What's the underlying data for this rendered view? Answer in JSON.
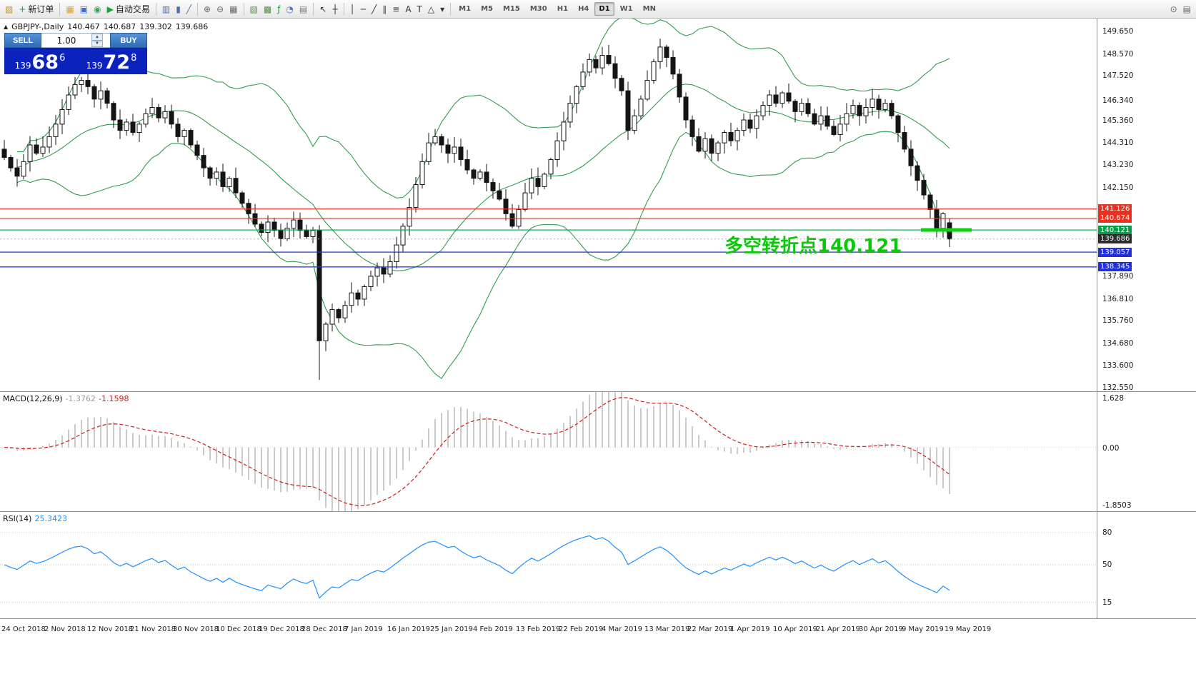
{
  "toolbar": {
    "timeframes": [
      "M1",
      "M5",
      "M15",
      "M30",
      "H1",
      "H4",
      "D1",
      "W1",
      "MN"
    ],
    "active_timeframe": "D1",
    "left_icons": [
      {
        "name": "charts-toggle-button",
        "icon": "chart-window-icon",
        "glyph": "▨",
        "color": "#b99531"
      },
      {
        "name": "new-order-button",
        "icon": "new-order-icon",
        "glyph": "+",
        "color": "#18a038",
        "label": "新订单"
      },
      {
        "sep": true
      },
      {
        "name": "chart-wizard-button",
        "icon": "chart-wizard-icon",
        "glyph": "▦",
        "color": "#d9a23a"
      },
      {
        "name": "profile-button",
        "icon": "profile-icon",
        "glyph": "▣",
        "color": "#3a6fd8"
      },
      {
        "name": "replay-button",
        "icon": "replay-icon",
        "glyph": "◉",
        "color": "#3aa05a"
      },
      {
        "name": "auto-trading-button",
        "icon": "play-icon",
        "glyph": "▶",
        "color": "#18a038",
        "label": "自动交易"
      },
      {
        "sep": true
      },
      {
        "name": "bar-chart-button",
        "icon": "bar-chart-icon",
        "glyph": "▥",
        "color": "#4a6fb0"
      },
      {
        "name": "candlestick-chart-button",
        "icon": "candlestick-icon",
        "glyph": "▮",
        "color": "#4a6fb0"
      },
      {
        "name": "line-chart-button",
        "icon": "line-chart-icon",
        "glyph": "╱",
        "color": "#4a6fb0"
      },
      {
        "sep": true
      },
      {
        "name": "zoom-in-button",
        "icon": "zoom-in-icon",
        "glyph": "⊕",
        "color": "#666666"
      },
      {
        "name": "zoom-out-button",
        "icon": "zoom-out-icon",
        "glyph": "⊖",
        "color": "#666666"
      },
      {
        "name": "tile-windows-button",
        "icon": "tile-windows-icon",
        "glyph": "▦",
        "color": "#666666"
      },
      {
        "sep": true
      },
      {
        "name": "arrange-charts-button",
        "icon": "arrange-charts-icon",
        "glyph": "▧",
        "color": "#5a8a4a"
      },
      {
        "name": "cascade-charts-button",
        "icon": "cascade-charts-icon",
        "glyph": "▩",
        "color": "#5a8a4a"
      },
      {
        "name": "indicators-button",
        "icon": "indicators-icon",
        "glyph": "ƒ",
        "color": "#18a038"
      },
      {
        "name": "periods-button",
        "icon": "clock-icon",
        "glyph": "◔",
        "color": "#3a6fd8"
      },
      {
        "name": "templates-button",
        "icon": "templates-icon",
        "glyph": "▤",
        "color": "#777777"
      },
      {
        "sep": true
      },
      {
        "name": "cursor-button",
        "icon": "cursor-icon",
        "glyph": "↖",
        "color": "#333333"
      },
      {
        "name": "crosshair-button",
        "icon": "crosshair-icon",
        "glyph": "┼",
        "color": "#333333"
      },
      {
        "sep": true
      },
      {
        "name": "vertical-line-button",
        "icon": "vertical-line-icon",
        "glyph": "│",
        "color": "#333333"
      },
      {
        "name": "horizontal-line-button",
        "icon": "horizontal-line-icon",
        "glyph": "─",
        "color": "#333333"
      },
      {
        "name": "trendline-button",
        "icon": "trendline-icon",
        "glyph": "╱",
        "color": "#333333"
      },
      {
        "name": "channel-button",
        "icon": "channel-icon",
        "glyph": "∥",
        "color": "#333333"
      },
      {
        "name": "fibonacci-button",
        "icon": "fibonacci-icon",
        "glyph": "≡",
        "color": "#333333"
      },
      {
        "name": "text-button",
        "icon": "text-icon",
        "glyph": "A",
        "color": "#333333"
      },
      {
        "name": "label-button",
        "icon": "label-icon",
        "glyph": "T",
        "color": "#333333"
      },
      {
        "name": "shapes-button",
        "icon": "shapes-icon",
        "glyph": "△",
        "color": "#333333"
      },
      {
        "name": "arrows-dropdown-button",
        "icon": "chevron-down-icon",
        "glyph": "▾",
        "color": "#333333"
      },
      {
        "sep": true
      }
    ],
    "right_icons": [
      {
        "name": "search-button",
        "icon": "search-icon",
        "glyph": "⊙",
        "color": "#666666"
      },
      {
        "name": "window-menu-button",
        "icon": "window-menu-icon",
        "glyph": "▤",
        "color": "#666666"
      }
    ]
  },
  "chart": {
    "symbol_title": "GBPJPY-,Daily",
    "ohlc": {
      "open": "140.467",
      "high": "140.687",
      "low": "139.302",
      "close": "139.686"
    },
    "trade_panel": {
      "sell_label": "SELL",
      "buy_label": "BUY",
      "volume": "1.00",
      "sell_price": {
        "main": "139",
        "big": "68",
        "sup": "6"
      },
      "buy_price": {
        "main": "139",
        "big": "72",
        "sup": "8"
      }
    },
    "annotation": {
      "text": "多空转折点140.121",
      "color": "#0cc70c"
    },
    "levels": [
      {
        "price": 141.126,
        "label": "141.126",
        "color": "#e53322",
        "kind": "resistance"
      },
      {
        "price": 140.674,
        "label": "140.674",
        "color": "#e53322",
        "kind": "resistance"
      },
      {
        "price": 140.121,
        "label": "140.121",
        "color": "#00a245",
        "kind": "pivot"
      },
      {
        "price": 139.057,
        "label": "139.057",
        "color": "#2330d8",
        "kind": "support"
      },
      {
        "price": 138.345,
        "label": "138.345",
        "color": "#2330d8",
        "kind": "support"
      }
    ],
    "current_price": {
      "label": "139.686",
      "price": 139.686,
      "color": "#2b2b2b"
    },
    "price_ticks": [
      {
        "label": "149.650",
        "price": 149.65
      },
      {
        "label": "148.570",
        "price": 148.57
      },
      {
        "label": "147.520",
        "price": 147.52
      },
      {
        "label": "146.340",
        "price": 146.34
      },
      {
        "label": "145.360",
        "price": 145.36
      },
      {
        "label": "144.310",
        "price": 144.31
      },
      {
        "label": "143.230",
        "price": 143.23
      },
      {
        "label": "142.150",
        "price": 142.15
      },
      {
        "label": "137.890",
        "price": 137.89
      },
      {
        "label": "136.810",
        "price": 136.81
      },
      {
        "label": "135.760",
        "price": 135.76
      },
      {
        "label": "134.680",
        "price": 134.68
      },
      {
        "label": "133.600",
        "price": 133.6
      },
      {
        "label": "132.550",
        "price": 132.55
      }
    ]
  },
  "chart_data": {
    "type": "candlestick",
    "symbol": "GBPJPY",
    "period": "Daily",
    "ylim": [
      132.38,
      150.27
    ],
    "closes": [
      143.6,
      143.1,
      142.7,
      143.4,
      144.2,
      143.8,
      144.1,
      144.6,
      145.2,
      145.9,
      146.6,
      147.1,
      147.3,
      147.0,
      146.4,
      146.8,
      146.2,
      145.4,
      144.9,
      145.3,
      144.8,
      145.2,
      145.7,
      146.0,
      145.5,
      145.8,
      145.2,
      144.6,
      144.9,
      144.2,
      143.7,
      143.1,
      142.6,
      142.9,
      142.2,
      142.6,
      141.9,
      141.4,
      140.9,
      140.4,
      140.0,
      140.5,
      140.1,
      139.7,
      140.2,
      140.6,
      140.1,
      139.8,
      140.1,
      134.8,
      135.6,
      136.3,
      135.9,
      136.5,
      137.1,
      136.8,
      137.4,
      137.9,
      138.3,
      138.0,
      138.6,
      139.4,
      140.3,
      141.2,
      142.3,
      143.4,
      144.3,
      144.6,
      144.2,
      143.8,
      144.1,
      143.5,
      143.0,
      142.6,
      142.9,
      142.4,
      142.0,
      141.6,
      140.9,
      140.3,
      141.1,
      141.9,
      142.6,
      142.2,
      142.8,
      143.5,
      144.4,
      145.3,
      146.2,
      147.0,
      147.7,
      148.3,
      147.9,
      148.5,
      148.1,
      147.4,
      146.8,
      144.9,
      145.6,
      146.4,
      147.3,
      148.2,
      148.9,
      148.4,
      147.6,
      146.5,
      145.4,
      144.6,
      143.9,
      144.5,
      143.8,
      144.3,
      144.8,
      144.4,
      144.9,
      145.4,
      145.0,
      145.6,
      146.1,
      146.6,
      146.2,
      146.7,
      146.3,
      145.8,
      146.2,
      145.7,
      145.2,
      145.6,
      145.1,
      144.7,
      145.2,
      145.7,
      146.1,
      145.6,
      146.0,
      146.4,
      145.9,
      146.2,
      145.6,
      144.8,
      144.0,
      143.2,
      142.5,
      141.8,
      141.1,
      140.2,
      140.9,
      139.686
    ],
    "last_candle": {
      "open": 140.467,
      "high": 140.687,
      "low": 139.302,
      "close": 139.686
    },
    "overlays": {
      "bollinger": {
        "period": 20,
        "deviation": 2,
        "color": "#2f9e4f"
      }
    },
    "highlight_segment": {
      "price": 140.121,
      "from_candle": 143,
      "to_candle": 150,
      "color": "#0ed00e"
    },
    "indicators": [
      {
        "id": "macd",
        "label": "MACD(12,26,9)",
        "value": "-1.3762",
        "signal_value": "-1.1598",
        "params": [
          12,
          26,
          9
        ],
        "ylim": [
          -1.8503,
          1.628
        ],
        "axis_labels": [
          {
            "label": "1.628",
            "v": 1.628
          },
          {
            "label": "0.00",
            "v": 0
          },
          {
            "label": "-1.8503",
            "v": -1.8503
          }
        ],
        "histogram_color": "#b4b4b4",
        "signal_color": "#d41a1a"
      },
      {
        "id": "rsi",
        "label": "RSI(14)",
        "value": "25.3423",
        "params": [
          14
        ],
        "levels": [
          {
            "label": "80",
            "v": 80
          },
          {
            "label": "50",
            "v": 50
          },
          {
            "label": "15",
            "v": 15
          }
        ],
        "line_color": "#1e90ff"
      }
    ],
    "dates": [
      "24 Oct 2018",
      "2 Nov 2018",
      "12 Nov 2018",
      "21 Nov 2018",
      "30 Nov 2018",
      "10 Dec 2018",
      "19 Dec 2018",
      "28 Dec 2018",
      "7 Jan 2019",
      "16 Jan 2019",
      "25 Jan 2019",
      "4 Feb 2019",
      "13 Feb 2019",
      "22 Feb 2019",
      "4 Mar 2019",
      "13 Mar 2019",
      "22 Mar 2019",
      "1 Apr 2019",
      "10 Apr 2019",
      "21 Apr 2019",
      "30 Apr 2019",
      "9 May 2019",
      "19 May 2019"
    ]
  }
}
